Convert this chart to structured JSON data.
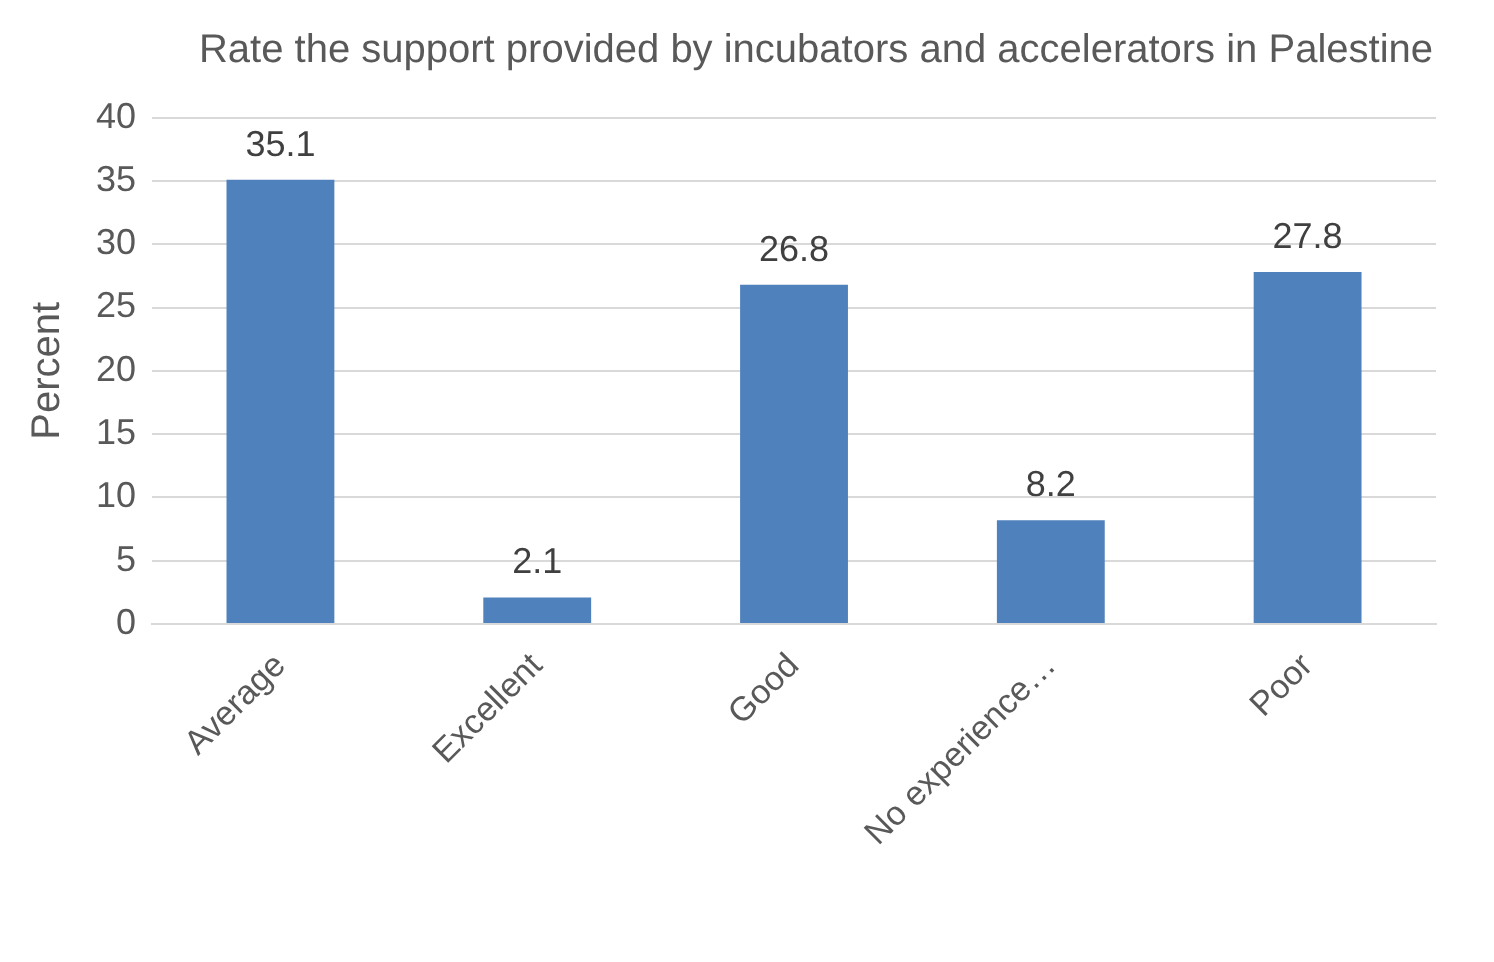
{
  "chart_data": {
    "type": "bar",
    "title": "Rate the support provided by incubators and accelerators in Palestine",
    "ylabel": "Percent",
    "categories": [
      "Average",
      "Excellent",
      "Good",
      "No experience…",
      "Poor"
    ],
    "values": [
      35.1,
      2.1,
      26.8,
      8.2,
      27.8
    ],
    "color": "#4f81bd",
    "ylim": [
      0,
      40
    ],
    "yticks": [
      0,
      5,
      10,
      15,
      20,
      25,
      30,
      35,
      40
    ],
    "grid": "y",
    "data_labels": true
  }
}
